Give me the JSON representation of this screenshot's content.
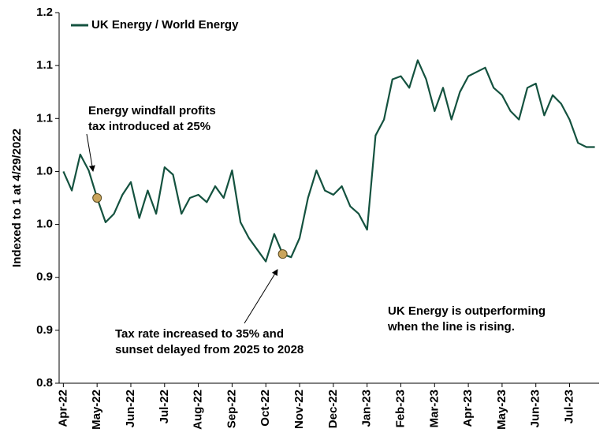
{
  "chart_data": {
    "type": "line",
    "y_label": "Indexed to 1 at 4/29/2022",
    "categories": [
      "Apr-22",
      null,
      null,
      null,
      "May-22",
      null,
      null,
      null,
      "Jun-22",
      null,
      null,
      null,
      "Jul-22",
      null,
      null,
      null,
      "Aug-22",
      null,
      null,
      null,
      "Sep-22",
      null,
      null,
      null,
      "Oct-22",
      null,
      null,
      null,
      "Nov-22",
      null,
      null,
      null,
      "Dec-22",
      null,
      null,
      null,
      "Jan-23",
      null,
      null,
      null,
      "Feb-23",
      null,
      null,
      null,
      "Mar-23",
      null,
      null,
      null,
      "Apr-23",
      null,
      null,
      null,
      "May-23",
      null,
      null,
      null,
      "Jun-23",
      null,
      null,
      null,
      "Jul-23",
      null,
      null,
      null
    ],
    "series": [
      {
        "name": "UK Energy / World Energy",
        "color": "#14523f",
        "values": [
          1.0,
          0.982,
          1.016,
          1.001,
          0.975,
          0.952,
          0.96,
          0.978,
          0.99,
          0.956,
          0.982,
          0.96,
          1.004,
          0.997,
          0.96,
          0.975,
          0.978,
          0.971,
          0.986,
          0.975,
          1.001,
          0.952,
          0.937,
          0.926,
          0.915,
          0.941,
          0.922,
          0.919,
          0.937,
          0.975,
          1.001,
          0.982,
          0.978,
          0.986,
          0.967,
          0.96,
          0.945,
          1.034,
          1.049,
          1.087,
          1.09,
          1.079,
          1.105,
          1.087,
          1.057,
          1.079,
          1.049,
          1.075,
          1.09,
          1.094,
          1.098,
          1.079,
          1.072,
          1.057,
          1.049,
          1.079,
          1.083,
          1.053,
          1.072,
          1.064,
          1.049,
          1.027,
          1.023,
          1.023
        ]
      }
    ],
    "ylim": [
      0.8,
      1.15
    ],
    "yticks": [
      {
        "value": 0.8,
        "label": "0.8"
      },
      {
        "value": 0.85,
        "label": "0.9"
      },
      {
        "value": 0.9,
        "label": "0.9"
      },
      {
        "value": 0.95,
        "label": "1.0"
      },
      {
        "value": 1.0,
        "label": "1.0"
      },
      {
        "value": 1.05,
        "label": "1.1"
      },
      {
        "value": 1.1,
        "label": "1.1"
      },
      {
        "value": 1.15,
        "label": "1.2"
      }
    ],
    "grid": false,
    "legend": "top-left",
    "annotations": [
      {
        "lines": [
          "Energy windfall profits",
          "tax introduced at 25%"
        ]
      },
      {
        "lines": [
          "Tax rate increased to 35% and",
          "sunset delayed from 2025 to 2028"
        ]
      },
      {
        "lines": [
          "UK Energy is outperforming",
          "when the line is rising."
        ]
      }
    ]
  }
}
